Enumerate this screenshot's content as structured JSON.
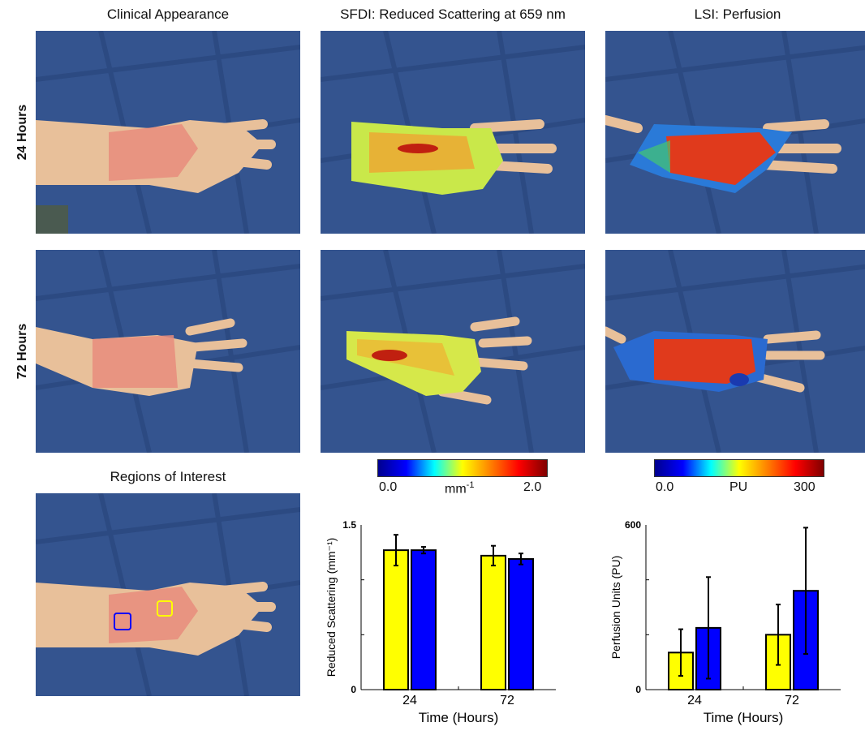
{
  "column_titles": {
    "clinical": "Clinical Appearance",
    "sfdi": "SFDI: Reduced Scattering at 659 nm",
    "lsi": "LSI: Perfusion"
  },
  "row_labels": {
    "r24": "24 Hours",
    "r72": "72 Hours"
  },
  "roi_title": "Regions of Interest",
  "colorbars": {
    "sfdi": {
      "min": "0.0",
      "unit": "mm",
      "unit_sup": "-1",
      "max": "2.0"
    },
    "lsi": {
      "min": "0.0",
      "unit": "PU",
      "max": "300"
    }
  },
  "colors": {
    "yellow": "#ffff00",
    "blue": "#0000ff",
    "drape": "#34548f"
  },
  "chart_data": [
    {
      "type": "bar",
      "categories": [
        "24",
        "72"
      ],
      "series": [
        {
          "values": [
            1.27,
            1.22
          ],
          "errors": [
            0.14,
            0.09
          ],
          "color": "#ffff00"
        },
        {
          "values": [
            1.27,
            1.19
          ],
          "errors": [
            0.03,
            0.05
          ],
          "color": "#0000ff"
        }
      ],
      "xlabel": "Time (Hours)",
      "ylabel": "Reduced Scattering (mm⁻¹)",
      "ylim": [
        0,
        1.5
      ],
      "yticks": [
        "0",
        "1.5"
      ]
    },
    {
      "type": "bar",
      "categories": [
        "24",
        "72"
      ],
      "series": [
        {
          "values": [
            135,
            200
          ],
          "errors": [
            85,
            110
          ],
          "color": "#ffff00"
        },
        {
          "values": [
            225,
            360
          ],
          "errors": [
            185,
            230
          ],
          "color": "#0000ff"
        }
      ],
      "xlabel": "Time (Hours)",
      "ylabel": "Perfusion Units (PU)",
      "ylim": [
        0,
        600
      ],
      "yticks": [
        "0",
        "600"
      ]
    }
  ]
}
